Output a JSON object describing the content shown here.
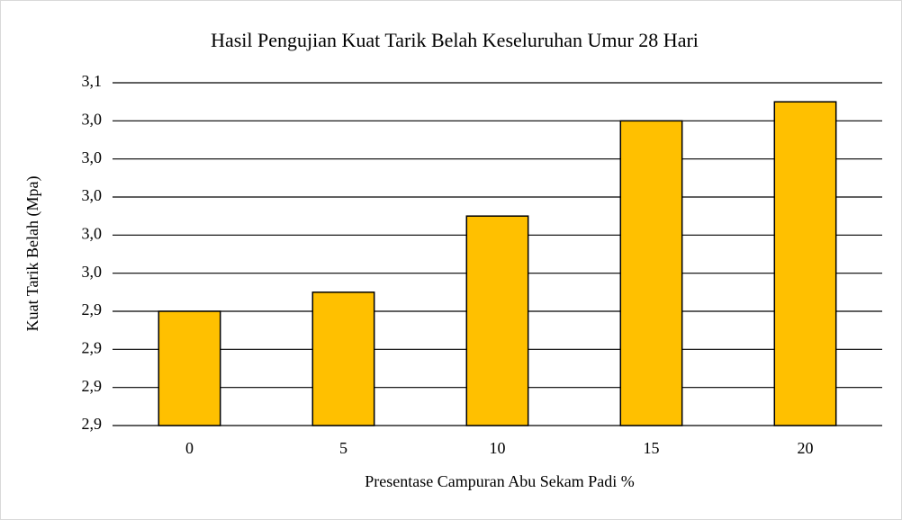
{
  "chart_data": {
    "type": "bar",
    "title": "Hasil Pengujian Kuat Tarik Belah Keseluruhan Umur 28 Hari",
    "x_label": "Presentase Campuran Abu Sekam Padi %",
    "y_label": "Kuat Tarik Belah (Mpa)",
    "categories": [
      "0",
      "5",
      "10",
      "15",
      "20"
    ],
    "values": [
      2.94,
      2.95,
      2.99,
      3.04,
      3.05
    ],
    "color": "#ffc000",
    "ylim": [
      2.88,
      3.06
    ],
    "yticks": [
      {
        "value": 2.88,
        "label": "2,9"
      },
      {
        "value": 2.9,
        "label": "2,9"
      },
      {
        "value": 2.92,
        "label": "2,9"
      },
      {
        "value": 2.94,
        "label": "2,9"
      },
      {
        "value": 2.96,
        "label": "3,0"
      },
      {
        "value": 2.98,
        "label": "3,0"
      },
      {
        "value": 3.0,
        "label": "3,0"
      },
      {
        "value": 3.02,
        "label": "3,0"
      },
      {
        "value": 3.04,
        "label": "3,0"
      },
      {
        "value": 3.06,
        "label": "3,1"
      }
    ],
    "grid": true
  }
}
